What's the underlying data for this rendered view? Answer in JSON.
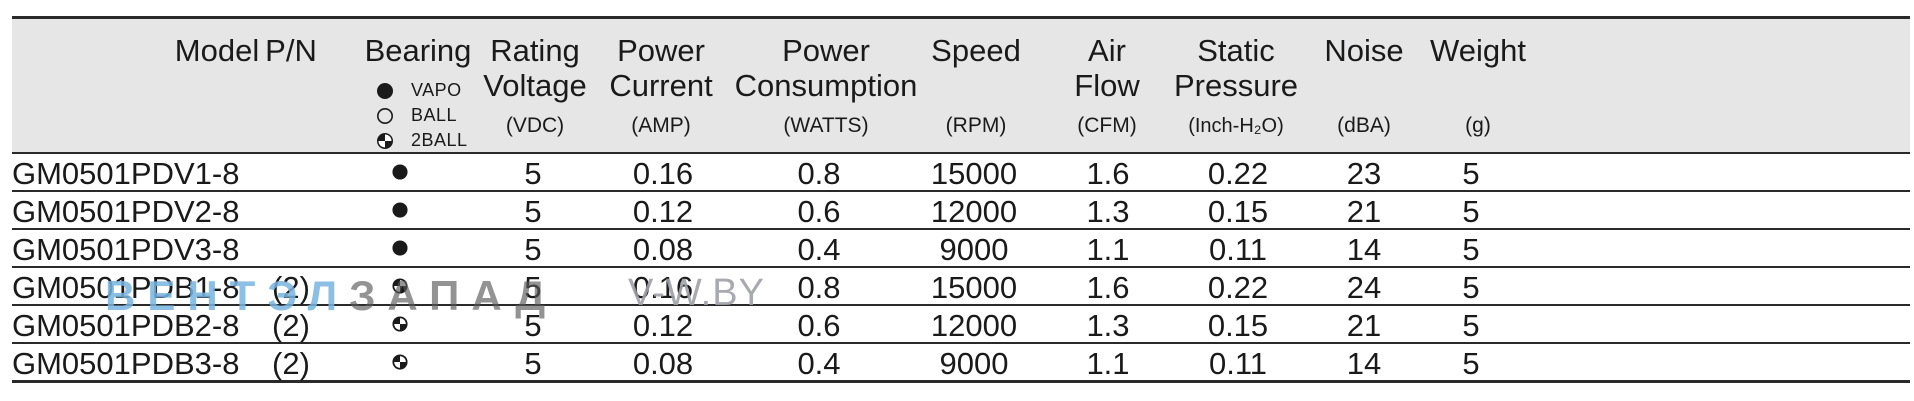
{
  "table": {
    "columns": [
      {
        "key": "model",
        "title": "Model",
        "unit": ""
      },
      {
        "key": "pn",
        "title": "P/N",
        "unit": ""
      },
      {
        "key": "bearing",
        "title": "Bearing",
        "unit": ""
      },
      {
        "key": "voltage",
        "title": "Rating\nVoltage",
        "unit": "(VDC)"
      },
      {
        "key": "current",
        "title": "Power\nCurrent",
        "unit": "(AMP)"
      },
      {
        "key": "consumption",
        "title": "Power\nConsumption",
        "unit": "(WATTS)"
      },
      {
        "key": "speed",
        "title": "Speed",
        "unit": "(RPM)"
      },
      {
        "key": "airflow",
        "title": "Air\nFlow",
        "unit": "(CFM)"
      },
      {
        "key": "pressure",
        "title": "Static\nPressure",
        "unit": "(Inch-H₂O)"
      },
      {
        "key": "noise",
        "title": "Noise",
        "unit": "(dBA)"
      },
      {
        "key": "weight",
        "title": "Weight",
        "unit": "(g)"
      }
    ],
    "bearing_legend": [
      {
        "symbol": "filled-circle-icon",
        "label": "VAPO"
      },
      {
        "symbol": "open-circle-icon",
        "label": "BALL"
      },
      {
        "symbol": "quartered-circle-icon",
        "label": "2BALL"
      }
    ],
    "rows": [
      {
        "model": "GM0501PDV1-8",
        "pn": "",
        "bearing": "filled-circle-icon",
        "voltage": "5",
        "current": "0.16",
        "consumption": "0.8",
        "speed": "15000",
        "airflow": "1.6",
        "pressure": "0.22",
        "noise": "23",
        "weight": "5"
      },
      {
        "model": "GM0501PDV2-8",
        "pn": "",
        "bearing": "filled-circle-icon",
        "voltage": "5",
        "current": "0.12",
        "consumption": "0.6",
        "speed": "12000",
        "airflow": "1.3",
        "pressure": "0.15",
        "noise": "21",
        "weight": "5"
      },
      {
        "model": "GM0501PDV3-8",
        "pn": "",
        "bearing": "filled-circle-icon",
        "voltage": "5",
        "current": "0.08",
        "consumption": "0.4",
        "speed": "9000",
        "airflow": "1.1",
        "pressure": "0.11",
        "noise": "14",
        "weight": "5"
      },
      {
        "model": "GM0501PDB1-8",
        "pn": "(2)",
        "bearing": "quartered-circle-icon",
        "voltage": "5",
        "current": "0.16",
        "consumption": "0.8",
        "speed": "15000",
        "airflow": "1.6",
        "pressure": "0.22",
        "noise": "24",
        "weight": "5"
      },
      {
        "model": "GM0501PDB2-8",
        "pn": "(2)",
        "bearing": "quartered-circle-icon",
        "voltage": "5",
        "current": "0.12",
        "consumption": "0.6",
        "speed": "12000",
        "airflow": "1.3",
        "pressure": "0.15",
        "noise": "21",
        "weight": "5"
      },
      {
        "model": "GM0501PDB3-8",
        "pn": "(2)",
        "bearing": "quartered-circle-icon",
        "voltage": "5",
        "current": "0.08",
        "consumption": "0.4",
        "speed": "9000",
        "airflow": "1.1",
        "pressure": "0.11",
        "noise": "14",
        "weight": "5"
      }
    ]
  },
  "watermark": {
    "part1": "ВЕНТЭЛ",
    "part2": "ЗАПАД",
    "site": "V-W.BY"
  },
  "colors": {
    "header_bg": "#e6e6e7",
    "rule": "#2a2a2a",
    "text": "#1a1a1a"
  }
}
